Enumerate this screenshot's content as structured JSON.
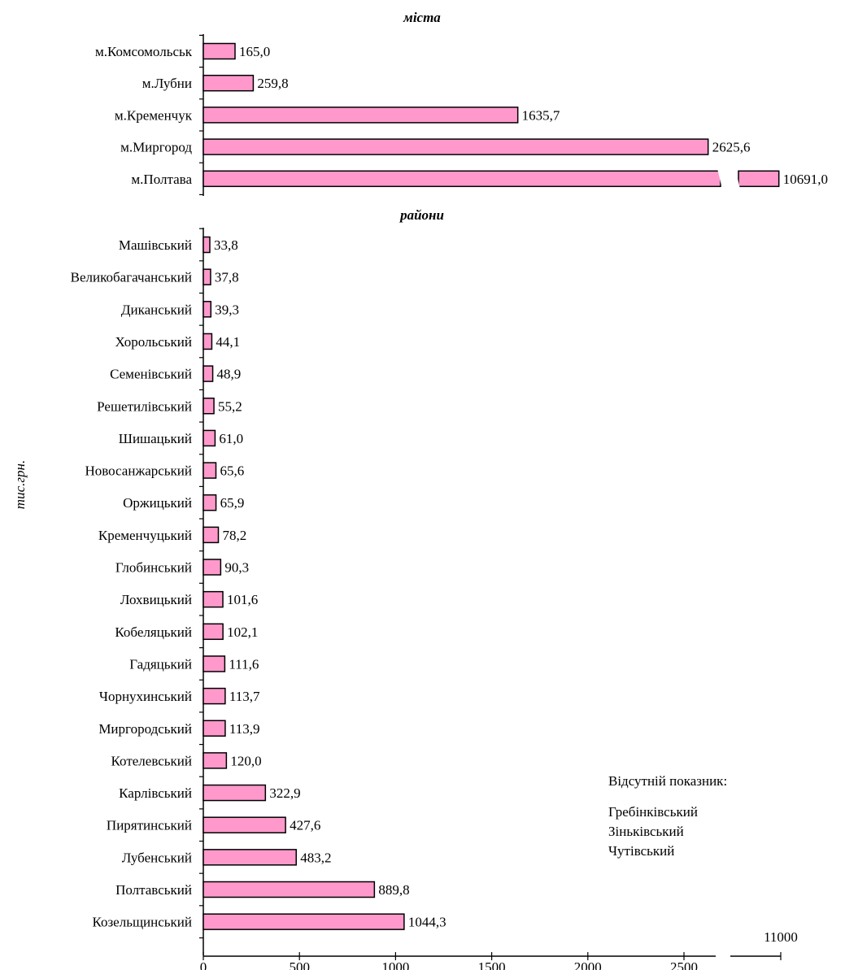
{
  "chart_data": {
    "type": "bar",
    "orientation": "horizontal",
    "y_axis_label": "тис.грн.",
    "color": "#ff99cc",
    "axis_break": true,
    "xlim": [
      0,
      11000
    ],
    "x_ticks": [
      "0",
      "500",
      "1000",
      "1500",
      "2000",
      "2500",
      "11000"
    ],
    "sections": [
      {
        "title": "міста",
        "categories": [
          "м.Комсомольськ",
          "м.Лубни",
          "м.Кременчук",
          "м.Миргород",
          "м.Полтава"
        ],
        "values": [
          165.0,
          259.8,
          1635.7,
          2625.6,
          10691.0
        ],
        "labels": [
          "165,0",
          "259,8",
          "1635,7",
          "2625,6",
          "10691,0"
        ]
      },
      {
        "title": "райони",
        "categories": [
          "Машівський",
          "Великобагачанський",
          "Диканський",
          "Хорольський",
          "Семенівський",
          "Решетилівський",
          "Шишацький",
          "Новосанжарський",
          "Оржицький",
          "Кременчуцький",
          "Глобинський",
          "Лохвицький",
          "Кобеляцький",
          "Гадяцький",
          "Чорнухинський",
          "Миргородський",
          "Котелевський",
          "Карлівський",
          "Пирятинський",
          "Лубенський",
          "Полтавський",
          "Козельщинський"
        ],
        "values": [
          33.8,
          37.8,
          39.3,
          44.1,
          48.9,
          55.2,
          61.0,
          65.6,
          65.9,
          78.2,
          90.3,
          101.6,
          102.1,
          111.6,
          113.7,
          113.9,
          120.0,
          322.9,
          427.6,
          483.2,
          889.8,
          1044.3
        ],
        "labels": [
          "33,8",
          "37,8",
          "39,3",
          "44,1",
          "48,9",
          "55,2",
          "61,0",
          "65,6",
          "65,9",
          "78,2",
          "90,3",
          "101,6",
          "102,1",
          "111,6",
          "113,7",
          "113,9",
          "120,0",
          "322,9",
          "427,6",
          "483,2",
          "889,8",
          "1044,3"
        ]
      }
    ],
    "missing_note": {
      "title": "Відсутній показник:",
      "items": [
        "Гребінківський",
        "Зіньківський",
        "Чутівський"
      ]
    }
  }
}
